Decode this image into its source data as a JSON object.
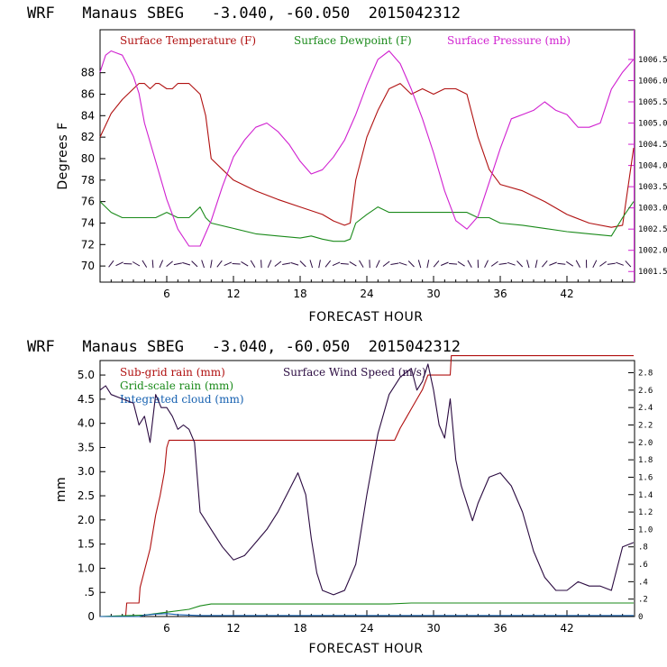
{
  "chart_data": [
    {
      "type": "line",
      "title": "WRF   Manaus SBEG   -3.040, -60.050  2015042312",
      "xlabel": "FORECAST HOUR",
      "ylabel": "Degrees F",
      "xlim": [
        0,
        48
      ],
      "ylim": [
        68.5,
        92
      ],
      "y2lim": [
        1001.25,
        1007.2
      ],
      "xticks": [
        6,
        12,
        18,
        24,
        30,
        36,
        42
      ],
      "yticks": [
        70,
        72,
        74,
        76,
        78,
        80,
        82,
        84,
        86,
        88
      ],
      "y2ticks": [
        1001.5,
        1002.0,
        1002.5,
        1003.0,
        1003.5,
        1004.0,
        1004.5,
        1005.0,
        1005.5,
        1006.0,
        1006.5
      ],
      "y2tick_labels": [
        "1001.5",
        "1002.0",
        "1002.5",
        "1003.0",
        "1003.5",
        "1004.0",
        "1004.5",
        "1005.0",
        "1005.5",
        "1006.0",
        "1006.5"
      ],
      "legend_placement": "top",
      "series": [
        {
          "name": "Surface Temperature (F)",
          "color": "#b01010",
          "axis": "left",
          "x": [
            0,
            1,
            2,
            3,
            3.5,
            4,
            4.5,
            5,
            5.3,
            6,
            6.5,
            7,
            8,
            9,
            9.5,
            10,
            12,
            14,
            16,
            18,
            20,
            21,
            22,
            22.5,
            23,
            24,
            25,
            26,
            27,
            28,
            29,
            30,
            31,
            32,
            33,
            34,
            35,
            36,
            38,
            40,
            42,
            44,
            46,
            47,
            48
          ],
          "y": [
            82,
            84.2,
            85.5,
            86.5,
            87,
            87,
            86.5,
            87,
            87,
            86.5,
            86.5,
            87,
            87,
            86,
            84,
            80,
            78,
            77,
            76.2,
            75.5,
            74.8,
            74.2,
            73.8,
            74,
            78,
            82,
            84.5,
            86.5,
            87,
            86,
            86.5,
            86,
            86.5,
            86.5,
            86,
            82,
            79,
            77.6,
            77,
            76,
            74.8,
            74,
            73.6,
            73.8,
            81
          ]
        },
        {
          "name": "Surface Dewpoint (F)",
          "color": "#1a8a1a",
          "axis": "left",
          "x": [
            0,
            1,
            2,
            3,
            4,
            5,
            6,
            7,
            8,
            9,
            9.5,
            10,
            12,
            14,
            16,
            18,
            19,
            20,
            21,
            22,
            22.5,
            23,
            24,
            25,
            26,
            27,
            28,
            29,
            30,
            31,
            32,
            33,
            34,
            35,
            36,
            38,
            40,
            42,
            44,
            46,
            47,
            48
          ],
          "y": [
            76,
            75,
            74.5,
            74.5,
            74.5,
            74.5,
            75,
            74.5,
            74.5,
            75.5,
            74.5,
            74,
            73.5,
            73,
            72.8,
            72.6,
            72.8,
            72.5,
            72.3,
            72.3,
            72.5,
            74,
            74.8,
            75.5,
            75,
            75,
            75,
            75,
            75,
            75,
            75,
            75,
            74.5,
            74.5,
            74,
            73.8,
            73.5,
            73.2,
            73,
            72.8,
            74.5,
            76
          ]
        },
        {
          "name": "Surface Pressure (mb)",
          "color": "#d020d0",
          "axis": "right",
          "x": [
            0,
            0.5,
            1,
            2,
            3,
            3.5,
            4,
            5,
            6,
            7,
            8,
            9,
            10,
            11,
            12,
            13,
            14,
            15,
            16,
            17,
            18,
            19,
            20,
            21,
            22,
            23,
            24,
            25,
            26,
            27,
            28,
            29,
            30,
            31,
            32,
            33,
            34,
            35,
            36,
            37,
            38,
            39,
            40,
            41,
            42,
            43,
            44,
            45,
            46,
            47,
            48
          ],
          "y": [
            1006.2,
            1006.6,
            1006.7,
            1006.6,
            1006.1,
            1005.7,
            1005.0,
            1004.1,
            1003.2,
            1002.5,
            1002.1,
            1002.1,
            1002.7,
            1003.5,
            1004.2,
            1004.6,
            1004.9,
            1005.0,
            1004.8,
            1004.5,
            1004.1,
            1003.8,
            1003.9,
            1004.2,
            1004.6,
            1005.2,
            1005.9,
            1006.5,
            1006.7,
            1006.4,
            1005.8,
            1005.1,
            1004.3,
            1003.4,
            1002.7,
            1002.5,
            1002.8,
            1003.6,
            1004.4,
            1005.1,
            1005.2,
            1005.3,
            1005.5,
            1005.3,
            1005.2,
            1004.9,
            1004.9,
            1005.0,
            1005.8,
            1006.2,
            1006.5
          ]
        }
      ],
      "wind_barbs_y": 70.2
    },
    {
      "type": "line",
      "title": "WRF   Manaus SBEG   -3.040, -60.050  2015042312",
      "xlabel": "FORECAST HOUR",
      "ylabel": "mm",
      "xlim": [
        0,
        48
      ],
      "ylim": [
        0,
        5.3
      ],
      "y2lim": [
        0,
        2.94
      ],
      "xticks": [
        6,
        12,
        18,
        24,
        30,
        36,
        42
      ],
      "yticks": [
        0,
        0.5,
        1.0,
        1.5,
        2.0,
        2.5,
        3.0,
        3.5,
        4.0,
        4.5,
        5.0
      ],
      "ytick_labels": [
        "0",
        ".5",
        "1.0",
        "1.5",
        "2.0",
        "2.5",
        "3.0",
        "3.5",
        "4.0",
        "4.5",
        "5.0"
      ],
      "y2ticks": [
        0,
        0.2,
        0.4,
        0.6,
        0.8,
        1.0,
        1.2,
        1.4,
        1.6,
        1.8,
        2.0,
        2.2,
        2.4,
        2.6,
        2.8
      ],
      "y2tick_labels": [
        "0",
        ".2",
        ".4",
        ".6",
        ".8",
        "1.0",
        "1.2",
        "1.4",
        "1.6",
        "1.8",
        "2.0",
        "2.2",
        "2.4",
        "2.6",
        "2.8"
      ],
      "legend_placement": "top-left",
      "series": [
        {
          "name": "Sub-grid rain (mm)",
          "color": "#b01010",
          "axis": "left",
          "x": [
            0,
            2.3,
            2.4,
            3.5,
            3.6,
            4.5,
            5.0,
            5.4,
            5.8,
            6.0,
            6.2,
            8,
            10,
            12,
            14,
            16,
            18,
            20,
            22,
            24,
            26.5,
            27,
            27.5,
            28,
            28.5,
            29,
            29.5,
            31.5,
            31.6,
            48
          ],
          "y": [
            0,
            0,
            0.28,
            0.28,
            0.6,
            1.4,
            2.1,
            2.5,
            3.0,
            3.5,
            3.65,
            3.65,
            3.65,
            3.65,
            3.65,
            3.65,
            3.65,
            3.65,
            3.65,
            3.65,
            3.65,
            3.9,
            4.1,
            4.3,
            4.5,
            4.7,
            5.0,
            5.0,
            5.4,
            5.4
          ]
        },
        {
          "name": "Grid-scale rain (mm)",
          "color": "#1a8a1a",
          "axis": "left",
          "x": [
            0,
            4,
            6,
            8,
            9,
            10,
            14,
            20,
            26,
            28,
            32,
            40,
            48
          ],
          "y": [
            0,
            0.03,
            0.09,
            0.15,
            0.22,
            0.26,
            0.26,
            0.26,
            0.26,
            0.28,
            0.28,
            0.28,
            0.28
          ]
        },
        {
          "name": "Integrated cloud (mm)",
          "color": "#1560b0",
          "axis": "left",
          "x": [
            0,
            3.5,
            4,
            5,
            6,
            7,
            8,
            9,
            10,
            20,
            30,
            40,
            48
          ],
          "y": [
            0,
            0,
            0.03,
            0.05,
            0.06,
            0.04,
            0.03,
            0.02,
            0.02,
            0.02,
            0.02,
            0.02,
            0.02
          ]
        },
        {
          "name": "Surface Wind Speed (m/s)",
          "color": "#2a0a40",
          "axis": "right",
          "x": [
            0,
            0.5,
            1,
            2,
            3,
            3.5,
            4,
            4.5,
            5,
            5.5,
            6,
            6.5,
            7,
            7.5,
            8,
            8.5,
            9,
            9.5,
            10,
            11,
            12,
            13,
            14,
            15,
            16,
            17,
            17.8,
            18.5,
            19,
            19.5,
            20,
            21,
            22,
            23,
            24,
            25,
            26,
            27,
            28,
            28.5,
            29,
            29.5,
            30,
            30.5,
            31,
            31.5,
            32,
            32.5,
            33,
            33.5,
            34,
            35,
            36,
            37,
            38,
            39,
            40,
            41,
            42,
            43,
            44,
            45,
            46,
            47,
            48
          ],
          "y": [
            2.6,
            2.65,
            2.55,
            2.5,
            2.45,
            2.2,
            2.3,
            2.0,
            2.55,
            2.4,
            2.4,
            2.3,
            2.15,
            2.2,
            2.15,
            2.0,
            1.2,
            1.1,
            1.0,
            0.8,
            0.65,
            0.7,
            0.85,
            1.0,
            1.2,
            1.45,
            1.65,
            1.4,
            0.9,
            0.5,
            0.3,
            0.25,
            0.3,
            0.6,
            1.4,
            2.1,
            2.55,
            2.75,
            2.85,
            2.6,
            2.7,
            2.9,
            2.6,
            2.2,
            2.05,
            2.5,
            1.8,
            1.5,
            1.3,
            1.1,
            1.3,
            1.6,
            1.65,
            1.5,
            1.2,
            0.75,
            0.45,
            0.3,
            0.3,
            0.4,
            0.35,
            0.35,
            0.3,
            0.8,
            0.85
          ]
        }
      ]
    }
  ]
}
